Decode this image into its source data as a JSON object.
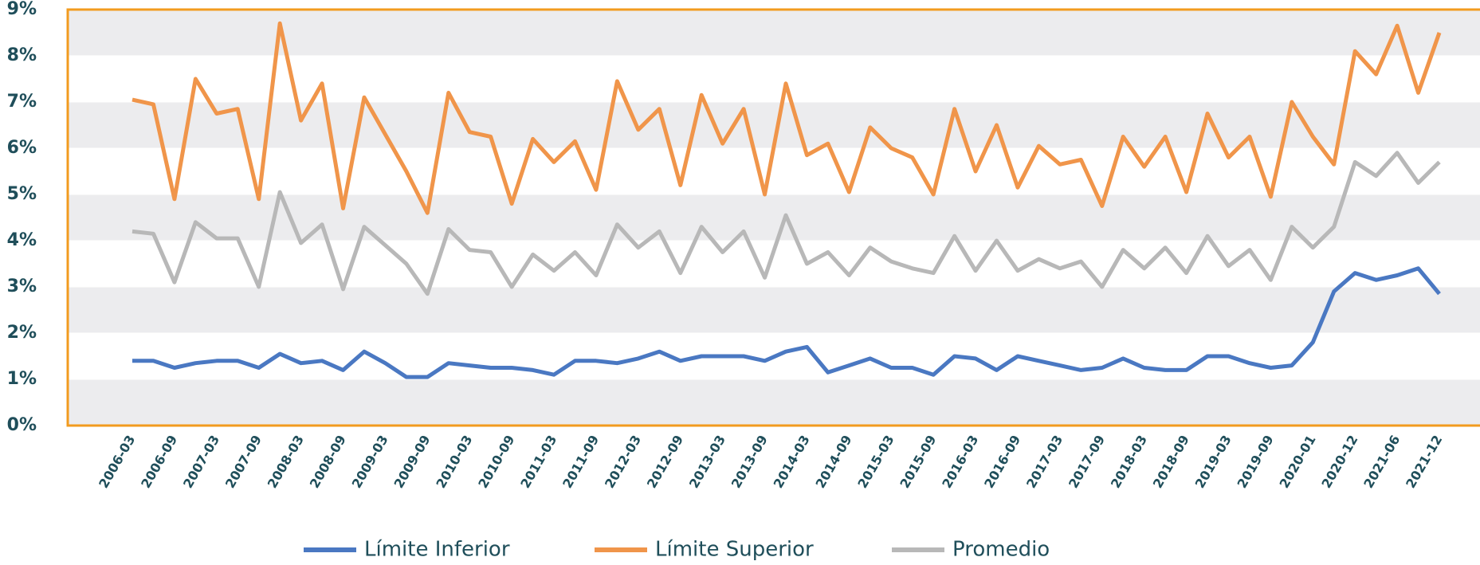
{
  "chart_data": {
    "type": "line",
    "categories": [
      "2006-03",
      null,
      "2006-09",
      null,
      "2007-03",
      null,
      "2007-09",
      null,
      "2008-03",
      null,
      "2008-09",
      null,
      "2009-03",
      null,
      "2009-09",
      null,
      "2010-03",
      null,
      "2010-09",
      null,
      "2011-03",
      null,
      "2011-09",
      null,
      "2012-03",
      null,
      "2012-09",
      null,
      "2013-03",
      null,
      "2013-09",
      null,
      "2014-03",
      null,
      "2014-09",
      null,
      "2015-03",
      null,
      "2015-09",
      null,
      "2016-03",
      null,
      "2016-09",
      null,
      "2017-03",
      null,
      "2017-09",
      null,
      "2018-03",
      null,
      "2018-09",
      null,
      "2019-03",
      null,
      "2019-09",
      null,
      "2020-01",
      null,
      "2020-12",
      null,
      "2021-06",
      null,
      "2021-12"
    ],
    "series": [
      {
        "name": "Límite Inferior",
        "color": "#4a78c2",
        "values": [
          1.4,
          1.4,
          1.25,
          1.35,
          1.4,
          1.4,
          1.25,
          1.55,
          1.35,
          1.4,
          1.2,
          1.6,
          1.35,
          1.05,
          1.05,
          1.35,
          1.3,
          1.25,
          1.25,
          1.2,
          1.1,
          1.4,
          1.4,
          1.35,
          1.45,
          1.6,
          1.4,
          1.5,
          1.5,
          1.5,
          1.4,
          1.6,
          1.7,
          1.15,
          1.3,
          1.45,
          1.25,
          1.25,
          1.1,
          1.5,
          1.45,
          1.2,
          1.5,
          1.4,
          1.3,
          1.2,
          1.25,
          1.45,
          1.25,
          1.2,
          1.2,
          1.5,
          1.5,
          1.35,
          1.25,
          1.3,
          1.8,
          2.9,
          3.3,
          3.15,
          3.25,
          3.4,
          2.85
        ]
      },
      {
        "name": "Límite Superior",
        "color": "#f0954a",
        "values": [
          7.05,
          6.95,
          4.9,
          7.5,
          6.75,
          6.85,
          4.9,
          8.7,
          6.6,
          7.4,
          4.7,
          7.1,
          6.3,
          5.5,
          4.6,
          7.2,
          6.35,
          6.25,
          4.8,
          6.2,
          5.7,
          6.15,
          5.1,
          7.45,
          6.4,
          6.85,
          5.2,
          7.15,
          6.1,
          6.85,
          5.0,
          7.4,
          5.85,
          6.1,
          5.05,
          6.45,
          6.0,
          5.8,
          5.0,
          6.85,
          5.5,
          6.5,
          5.15,
          6.05,
          5.65,
          5.75,
          4.75,
          6.25,
          5.6,
          6.25,
          5.05,
          6.75,
          5.8,
          6.25,
          4.95,
          7.0,
          6.25,
          5.65,
          8.1,
          7.6,
          8.65,
          7.2,
          8.5
        ]
      },
      {
        "name": "Promedio",
        "color": "#b8b8b8",
        "values": [
          4.2,
          4.15,
          3.1,
          4.4,
          4.05,
          4.05,
          3.0,
          5.05,
          3.95,
          4.35,
          2.95,
          4.3,
          3.9,
          3.5,
          2.85,
          4.25,
          3.8,
          3.75,
          3.0,
          3.7,
          3.35,
          3.75,
          3.25,
          4.35,
          3.85,
          4.2,
          3.3,
          4.3,
          3.75,
          4.2,
          3.2,
          4.55,
          3.5,
          3.75,
          3.25,
          3.85,
          3.55,
          3.4,
          3.3,
          4.1,
          3.35,
          4.0,
          3.35,
          3.6,
          3.4,
          3.55,
          3.0,
          3.8,
          3.4,
          3.85,
          3.3,
          4.1,
          3.45,
          3.8,
          3.15,
          4.3,
          3.85,
          4.3,
          5.7,
          5.4,
          5.9,
          5.25,
          5.7
        ]
      }
    ],
    "ylim": [
      0,
      9
    ],
    "yticks": [
      {
        "value": 0,
        "label": "0%"
      },
      {
        "value": 1,
        "label": "1%"
      },
      {
        "value": 2,
        "label": "2%"
      },
      {
        "value": 3,
        "label": "3%"
      },
      {
        "value": 4,
        "label": "4%"
      },
      {
        "value": 5,
        "label": "5%"
      },
      {
        "value": 6,
        "label": "6%"
      },
      {
        "value": 7,
        "label": "7%"
      },
      {
        "value": 8,
        "label": "8%"
      },
      {
        "value": 9,
        "label": "9%"
      }
    ],
    "grid": true,
    "legend": "bottom"
  }
}
